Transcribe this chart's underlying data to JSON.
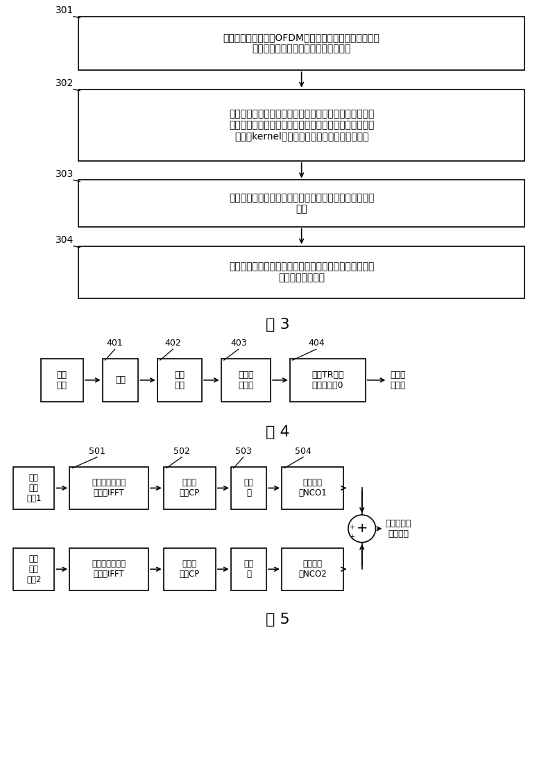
{
  "background": "#ffffff",
  "fig3": {
    "label": "图 3",
    "steps": [
      {
        "id": "301",
        "text": "在每个正交频分复用OFDM符号上，将每个载波的基带频\n域信号合路成时域多载波合路通道信号"
      },
      {
        "id": "302",
        "text": "从所述多载波合路通道信号中提取削波噪声，并依据所述\n削波噪声在所述多载波合路通道信号中的位置，从所述加\n长的核kernel波形上截取通道长度的类脉冲信号"
      },
      {
        "id": "303",
        "text": "使用所述类脉冲信号与所述提取的削波噪声复乘得到对消\n噪声"
      },
      {
        "id": "304",
        "text": "在延时后的多载波合路通道信号上反向叠加所述对消噪声\n，进行峰均比抑制"
      }
    ]
  },
  "fig4": {
    "label": "图 4",
    "input_label": "数据\n信号",
    "output_label": "基带频\n域信号",
    "boxes": [
      {
        "id": "401",
        "text": "编码"
      },
      {
        "id": "402",
        "text": "星座\n映射"
      },
      {
        "id": "403",
        "text": "导频信\n息插入"
      },
      {
        "id": "404",
        "text": "空余TR、保\n护子载波置0"
      }
    ]
  },
  "fig5": {
    "label": "图 5",
    "row1_input": "基带\n频域\n信号1",
    "row2_input": "基带\n频域\n信号2",
    "output_label": "多载波合路\n通道信号",
    "row1_boxes": [
      {
        "id": "501",
        "text": "低倍速反向傅立\n叶变换IFFT"
      },
      {
        "id": "502",
        "text": "加循环\n前缀CP"
      },
      {
        "id": "503",
        "text": "过采\n样"
      },
      {
        "id": "504",
        "text": "数控振荡\n器NCO1"
      }
    ],
    "row2_boxes": [
      {
        "id": "",
        "text": "低倍速反向傅立\n叶变换IFFT"
      },
      {
        "id": "",
        "text": "加循环\n前缀CP"
      },
      {
        "id": "",
        "text": "过采\n样"
      },
      {
        "id": "",
        "text": "数控振荡\n器NCO2"
      }
    ]
  }
}
